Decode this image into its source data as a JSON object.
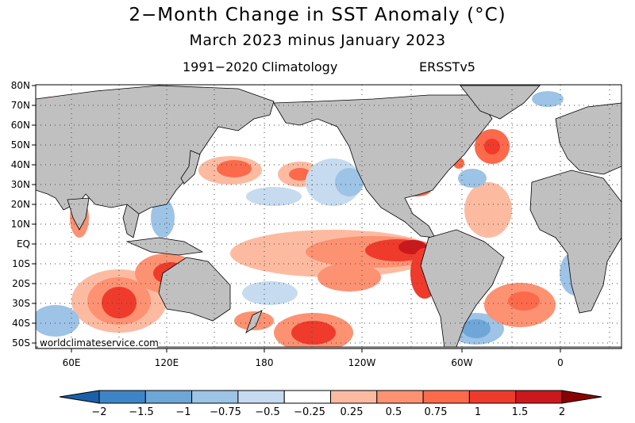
{
  "title": "2−Month Change in SST Anomaly (°C)",
  "subtitle": "March 2023 minus January 2023",
  "climatology": "1991−2020 Climatology",
  "dataset": "ERSSTv5",
  "credit": "worldclimateservice.com",
  "map": {
    "lat_labels": [
      "80N",
      "70N",
      "60N",
      "50N",
      "40N",
      "30N",
      "20N",
      "10N",
      "EQ",
      "10S",
      "20S",
      "30S",
      "40S",
      "50S"
    ],
    "lon_labels": [
      "60E",
      "120E",
      "180",
      "120W",
      "60W",
      "0"
    ],
    "land_color": "#c0c0c0",
    "ocean_color": "#ffffff"
  },
  "colorbar": {
    "labels": [
      "−2",
      "−1.5",
      "−1",
      "−0.75",
      "−0.5",
      "−0.25",
      "0.25",
      "0.5",
      "0.75",
      "1",
      "1.5",
      "2"
    ],
    "colors": [
      "#1b5fa8",
      "#3d85c6",
      "#6fa6d8",
      "#9dc3e6",
      "#c6dbef",
      "#ffffff",
      "#fcbba1",
      "#fc9272",
      "#fb6a4a",
      "#ef3b2c",
      "#cb181d",
      "#8b0000"
    ]
  }
}
